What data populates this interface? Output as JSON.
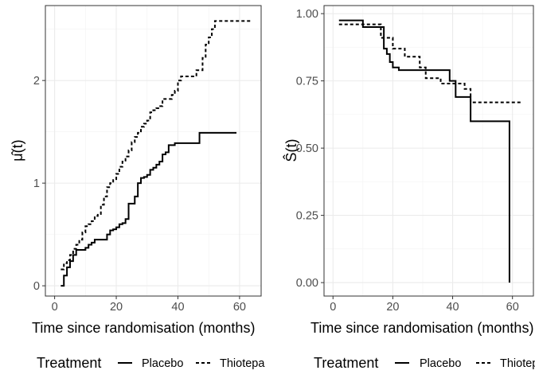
{
  "figure": {
    "legend": {
      "title": "Treatment",
      "position": "bottom",
      "entries": [
        {
          "label": "Placebo",
          "linetype": "solid"
        },
        {
          "label": "Thiotepa",
          "linetype": "dashed"
        }
      ]
    }
  },
  "chart_data": [
    {
      "type": "line",
      "subtype": "step",
      "ylabel": "μ̂(t)",
      "xlabel": "Time since randomisation (months)",
      "xlim": [
        -3,
        67
      ],
      "ylim": [
        -0.1,
        2.73
      ],
      "x_ticks": [
        0,
        20,
        40,
        60
      ],
      "y_ticks": [
        0,
        1,
        2
      ],
      "grid": true,
      "legend": "bottom",
      "series": [
        {
          "name": "Placebo",
          "linetype": "solid",
          "x": [
            2,
            3,
            4,
            5,
            6,
            7,
            10,
            11,
            12,
            13,
            14,
            17,
            18,
            19,
            20,
            21,
            22,
            23,
            24,
            26,
            27,
            28,
            29,
            30,
            31,
            32,
            33,
            34,
            35,
            36,
            37,
            38,
            39,
            40,
            41,
            47,
            59
          ],
          "y": [
            0.0,
            0.1,
            0.18,
            0.24,
            0.3,
            0.35,
            0.37,
            0.4,
            0.42,
            0.45,
            0.45,
            0.5,
            0.54,
            0.55,
            0.57,
            0.6,
            0.61,
            0.65,
            0.8,
            0.87,
            1.0,
            1.05,
            1.06,
            1.08,
            1.13,
            1.15,
            1.18,
            1.21,
            1.28,
            1.3,
            1.37,
            1.37,
            1.39,
            1.39,
            1.39,
            1.49,
            1.49
          ]
        },
        {
          "name": "Thiotepa",
          "linetype": "dashed",
          "x": [
            2,
            3,
            4,
            5,
            6,
            7,
            8,
            9,
            10,
            11,
            12,
            13,
            14,
            15,
            16,
            17,
            18,
            19,
            20,
            21,
            22,
            23,
            24,
            25,
            26,
            27,
            28,
            29,
            30,
            31,
            32,
            33,
            34,
            35,
            38,
            39,
            40,
            41,
            43,
            46,
            48,
            49,
            50,
            51,
            52,
            53,
            59,
            64
          ],
          "y": [
            0.16,
            0.22,
            0.25,
            0.3,
            0.36,
            0.4,
            0.45,
            0.52,
            0.58,
            0.6,
            0.63,
            0.68,
            0.7,
            0.79,
            0.87,
            0.96,
            1.0,
            1.03,
            1.09,
            1.16,
            1.21,
            1.26,
            1.32,
            1.4,
            1.45,
            1.49,
            1.55,
            1.58,
            1.61,
            1.69,
            1.71,
            1.73,
            1.75,
            1.82,
            1.86,
            1.9,
            2.0,
            2.04,
            2.04,
            2.1,
            2.22,
            2.35,
            2.42,
            2.5,
            2.58,
            2.58,
            2.58,
            2.58
          ]
        }
      ]
    },
    {
      "type": "line",
      "subtype": "step",
      "ylabel": "Ŝ(t)",
      "xlabel": "Time since randomisation (months)",
      "xlim": [
        -3,
        67
      ],
      "ylim": [
        -0.05,
        1.03
      ],
      "x_ticks": [
        0,
        20,
        40,
        60
      ],
      "y_ticks": [
        0.0,
        0.25,
        0.5,
        0.75,
        1.0
      ],
      "y_tick_labels": [
        "0.00",
        "0.25",
        "0.50",
        "0.75",
        "1.00"
      ],
      "grid": true,
      "legend": "bottom",
      "series": [
        {
          "name": "Placebo",
          "linetype": "solid",
          "x": [
            2,
            10,
            17,
            18,
            19,
            20,
            22,
            30,
            36,
            39,
            41,
            46,
            59
          ],
          "y": [
            0.975,
            0.95,
            0.87,
            0.85,
            0.82,
            0.8,
            0.79,
            0.79,
            0.79,
            0.75,
            0.69,
            0.6,
            0.0
          ]
        },
        {
          "name": "Thiotepa",
          "linetype": "dashed",
          "x": [
            2,
            9,
            16,
            20,
            24,
            29,
            31,
            36,
            39,
            44,
            46,
            63
          ],
          "y": [
            0.96,
            0.96,
            0.91,
            0.87,
            0.84,
            0.8,
            0.76,
            0.74,
            0.74,
            0.72,
            0.67,
            0.67
          ]
        }
      ]
    }
  ]
}
